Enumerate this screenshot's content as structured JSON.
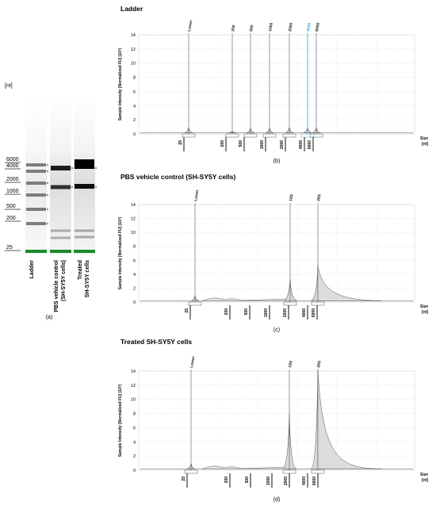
{
  "gel": {
    "unit_label": "[nt]",
    "ladder_marks": [
      "6000",
      "4000",
      "2000",
      "1000",
      "500",
      "200",
      "25"
    ],
    "lanes": [
      "Ladder",
      "PBS vehicle control (SH-SY5Y cells)",
      "Treated SH-SY5Y cells"
    ],
    "lane_label_lines": [
      [
        "Ladder"
      ],
      [
        "PBS vehicle control",
        "(SH-SY5Y cells)"
      ],
      [
        "Treated",
        "SH-SY5Y cells"
      ]
    ],
    "caption": "(a)",
    "colors": {
      "marker_band": "#1a8a2a",
      "band": "#111111",
      "background": "#ffffff"
    }
  },
  "chart_data": [
    {
      "type": "line",
      "title": "Ladder",
      "caption": "(b)",
      "ylabel": "Sample Intensity [Normalized FU] (10³)",
      "xlabel_lines": [
        "Size",
        "[nt]"
      ],
      "ylim": [
        0,
        14
      ],
      "yticks": [
        0,
        2,
        4,
        6,
        8,
        10,
        12,
        14
      ],
      "peaks": [
        {
          "label": "Lower",
          "height": 0.9,
          "highlight": false
        },
        {
          "label": "200",
          "height": 0.35,
          "highlight": false
        },
        {
          "label": "500",
          "height": 0.85,
          "highlight": false
        },
        {
          "label": "1000",
          "height": 0.85,
          "highlight": false
        },
        {
          "label": "2000",
          "height": 0.95,
          "highlight": false
        },
        {
          "label": "4000",
          "height": 0.9,
          "highlight": true
        },
        {
          "label": "6000",
          "height": 0.9,
          "highlight": false
        }
      ],
      "size_ticks": [
        "25",
        "200",
        "500",
        "1000",
        "2000",
        "4000",
        "6000"
      ],
      "highlight_color": "#3ab0e0"
    },
    {
      "type": "line",
      "title": "PBS vehicle control (SH-SY5Y cells)",
      "caption": "(c)",
      "ylabel": "Sample Intensity [Normalized FU] (10³)",
      "xlabel_lines": [
        "Size",
        "[nt]"
      ],
      "ylim": [
        0,
        14
      ],
      "yticks": [
        0,
        2,
        4,
        6,
        8,
        10,
        12,
        14
      ],
      "peaks": [
        {
          "label": "Lower",
          "height": 0.9
        },
        {
          "label": "18S",
          "height": 3.3
        },
        {
          "label": "28S",
          "height": 5.2
        }
      ],
      "size_ticks": [
        "25",
        "200",
        "500",
        "1000",
        "2000",
        "4000",
        "6000"
      ]
    },
    {
      "type": "line",
      "title": "Treated SH-SY5Y cells",
      "caption": "(d)",
      "ylabel": "Sample Intensity [Normalized FU] (10³)",
      "xlabel_lines": [
        "Size",
        "[nt]"
      ],
      "ylim": [
        0,
        14
      ],
      "yticks": [
        0,
        2,
        4,
        6,
        8,
        10,
        12,
        14
      ],
      "peaks": [
        {
          "label": "Lower",
          "height": 0.9
        },
        {
          "label": "18S",
          "height": 8.0
        },
        {
          "label": "28S",
          "height": 14.2
        }
      ],
      "size_ticks": [
        "25",
        "200",
        "500",
        "1000",
        "2000",
        "4000",
        "6000"
      ]
    }
  ]
}
